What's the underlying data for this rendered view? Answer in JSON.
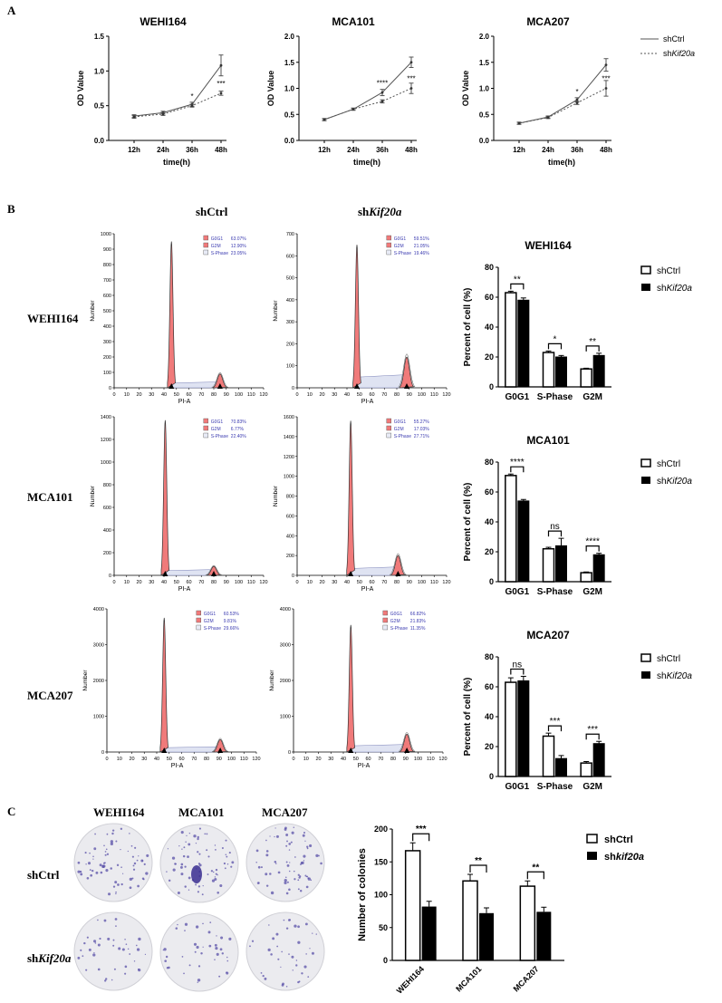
{
  "panels": {
    "a": "A",
    "b": "B",
    "c": "C"
  },
  "panel_a": {
    "legend": {
      "ctrl": "shCtrl",
      "kd_prefix": "sh",
      "kd_italic": "Kif20a"
    },
    "charts": [
      {
        "title": "WEHI164",
        "ylabel": "OD Value",
        "xlabel": "time(h)",
        "ymax": 1.5,
        "yticks": [
          "0.0",
          "0.5",
          "1.0",
          "1.5"
        ],
        "ytick_vals": [
          0,
          0.5,
          1.0,
          1.5
        ],
        "categories": [
          "12h",
          "24h",
          "36h",
          "48h"
        ],
        "ctrl": [
          0.35,
          0.4,
          0.52,
          1.08
        ],
        "ctrl_err": [
          0.02,
          0.02,
          0.03,
          0.15
        ],
        "kd": [
          0.34,
          0.38,
          0.5,
          0.68
        ],
        "kd_err": [
          0.02,
          0.02,
          0.02,
          0.03
        ],
        "marks": [
          "",
          "",
          "*",
          "***"
        ]
      },
      {
        "title": "MCA101",
        "ylabel": "OD Value",
        "xlabel": "time(h)",
        "ymax": 2.0,
        "yticks": [
          "0.0",
          "0.5",
          "1.0",
          "1.5",
          "2.0"
        ],
        "ytick_vals": [
          0,
          0.5,
          1.0,
          1.5,
          2.0
        ],
        "categories": [
          "12h",
          "24h",
          "36h",
          "48h"
        ],
        "ctrl": [
          0.4,
          0.6,
          0.92,
          1.5
        ],
        "ctrl_err": [
          0.02,
          0.02,
          0.06,
          0.1
        ],
        "kd": [
          0.4,
          0.6,
          0.75,
          1.0
        ],
        "kd_err": [
          0.02,
          0.02,
          0.03,
          0.1
        ],
        "marks": [
          "",
          "",
          "****",
          "***"
        ]
      },
      {
        "title": "MCA207",
        "ylabel": "OD Value",
        "xlabel": "time(h)",
        "ymax": 2.0,
        "yticks": [
          "0.0",
          "0.5",
          "1.0",
          "1.5",
          "2.0"
        ],
        "ytick_vals": [
          0,
          0.5,
          1.0,
          1.5,
          2.0
        ],
        "categories": [
          "12h",
          "24h",
          "36h",
          "48h"
        ],
        "ctrl": [
          0.33,
          0.45,
          0.78,
          1.45
        ],
        "ctrl_err": [
          0.02,
          0.02,
          0.04,
          0.12
        ],
        "kd": [
          0.33,
          0.44,
          0.72,
          1.0
        ],
        "kd_err": [
          0.02,
          0.02,
          0.03,
          0.15
        ],
        "marks": [
          "",
          "",
          "*",
          "***"
        ]
      }
    ]
  },
  "panel_b": {
    "col_ctrl": "shCtrl",
    "col_kd_prefix": "sh",
    "col_kd_italic": "Kif20a",
    "rows": [
      "WEHI164",
      "MCA101",
      "MCA207"
    ],
    "xlabel": "PI-A",
    "ylabel": "Number",
    "xticks": [
      "0",
      "10",
      "20",
      "30",
      "40",
      "50",
      "60",
      "70",
      "80",
      "90",
      "100",
      "110",
      "120"
    ],
    "histograms": [
      {
        "yticks": [
          "0",
          "100",
          "200",
          "300",
          "400",
          "500",
          "600",
          "700",
          "800",
          "900",
          "1000"
        ],
        "ymax": 1000,
        "g1_peak": 950,
        "g1_pos": 46,
        "g2_pos": 85,
        "g2_height": 90,
        "stats": [
          {
            "label": "G0G1",
            "value": "63.07%"
          },
          {
            "label": "G2M",
            "value": "12.90%"
          },
          {
            "label": "S-Phase",
            "value": "23.05%"
          }
        ]
      },
      {
        "yticks": [
          "0",
          "100",
          "200",
          "300",
          "400",
          "500",
          "600",
          "700"
        ],
        "ymax": 700,
        "g1_peak": 650,
        "g1_pos": 48,
        "g2_pos": 88,
        "g2_height": 140,
        "stats": [
          {
            "label": "G0G1",
            "value": "59.51%"
          },
          {
            "label": "G2M",
            "value": "21.05%"
          },
          {
            "label": "S-Phase",
            "value": "19.46%"
          }
        ]
      },
      {
        "yticks": [
          "0",
          "200",
          "400",
          "600",
          "800",
          "1000",
          "1200",
          "1400"
        ],
        "ymax": 1400,
        "g1_peak": 1370,
        "g1_pos": 41,
        "g2_pos": 80,
        "g2_height": 80,
        "stats": [
          {
            "label": "G0G1",
            "value": "70.83%"
          },
          {
            "label": "G2M",
            "value": "6.77%"
          },
          {
            "label": "S-Phase",
            "value": "22.40%"
          }
        ]
      },
      {
        "yticks": [
          "0",
          "200",
          "400",
          "600",
          "800",
          "1000",
          "1200",
          "1400",
          "1600"
        ],
        "ymax": 1600,
        "g1_peak": 1560,
        "g1_pos": 43,
        "g2_pos": 81,
        "g2_height": 200,
        "stats": [
          {
            "label": "G0G1",
            "value": "55.27%"
          },
          {
            "label": "G2M",
            "value": "17.03%"
          },
          {
            "label": "S-Phase",
            "value": "27.71%"
          }
        ]
      },
      {
        "yticks": [
          "0",
          "1000",
          "2000",
          "3000",
          "4000"
        ],
        "ymax": 4000,
        "g1_peak": 3750,
        "g1_pos": 46,
        "g2_pos": 91,
        "g2_height": 350,
        "stats": [
          {
            "label": "G0G1",
            "value": "60.53%"
          },
          {
            "label": "G2M",
            "value": "9.81%"
          },
          {
            "label": "S-Phase",
            "value": "29.66%"
          }
        ]
      },
      {
        "yticks": [
          "0",
          "1000",
          "2000",
          "3000",
          "4000"
        ],
        "ymax": 4000,
        "g1_peak": 3550,
        "g1_pos": 46,
        "g2_pos": 91,
        "g2_height": 500,
        "stats": [
          {
            "label": "G0G1",
            "value": "66.82%"
          },
          {
            "label": "G2M",
            "value": "21.83%"
          },
          {
            "label": "S-Phase",
            "value": "11.35%"
          }
        ]
      }
    ],
    "bar_charts": [
      {
        "title": "WEHI164",
        "ylabel": "Percent of cell (%)",
        "categories": [
          "G0G1",
          "S-Phase",
          "G2M"
        ],
        "yticks": [
          "0",
          "20",
          "40",
          "60",
          "80"
        ],
        "ymax": 80,
        "ctrl": [
          63,
          23,
          12
        ],
        "ctrl_err": [
          1,
          1,
          0.5
        ],
        "kd": [
          58,
          20,
          21
        ],
        "kd_err": [
          1.5,
          1,
          1.5
        ],
        "marks": [
          "**",
          "*",
          "**"
        ]
      },
      {
        "title": "MCA101",
        "ylabel": "Percent of cell (%)",
        "categories": [
          "G0G1",
          "S-Phase",
          "G2M"
        ],
        "yticks": [
          "0",
          "20",
          "40",
          "60",
          "80"
        ],
        "ymax": 80,
        "ctrl": [
          71,
          22,
          6
        ],
        "ctrl_err": [
          1,
          1,
          0.5
        ],
        "kd": [
          54,
          24,
          18
        ],
        "kd_err": [
          1,
          5,
          1
        ],
        "marks": [
          "****",
          "ns",
          "****"
        ]
      },
      {
        "title": "MCA207",
        "ylabel": "Percent of cell (%)",
        "categories": [
          "G0G1",
          "S-Phase",
          "G2M"
        ],
        "yticks": [
          "0",
          "20",
          "40",
          "60",
          "80"
        ],
        "ymax": 80,
        "ctrl": [
          63,
          27,
          9
        ],
        "ctrl_err": [
          3,
          2,
          1
        ],
        "kd": [
          64,
          12,
          22
        ],
        "kd_err": [
          3,
          2,
          1.5
        ],
        "marks": [
          "ns",
          "***",
          "***"
        ]
      }
    ],
    "legend": {
      "ctrl": "shCtrl",
      "kd_prefix": "sh",
      "kd_italic": "Kif20a"
    }
  },
  "panel_c": {
    "cols": [
      "WEHI164",
      "MCA101",
      "MCA207"
    ],
    "row_ctrl": "shCtrl",
    "row_kd_prefix": "sh",
    "row_kd_italic": "Kif20a",
    "chart": {
      "ylabel": "Number of colonies",
      "categories": [
        "WEHI164",
        "MCA101",
        "MCA207"
      ],
      "yticks": [
        "0",
        "50",
        "100",
        "150",
        "200"
      ],
      "ymax": 200,
      "ctrl": [
        167,
        121,
        113
      ],
      "ctrl_err": [
        12,
        10,
        8
      ],
      "kd": [
        82,
        72,
        74
      ],
      "kd_err": [
        8,
        8,
        7
      ],
      "marks": [
        "***",
        "**",
        "**"
      ]
    },
    "legend": {
      "ctrl": "shCtrl",
      "kd_prefix": "sh",
      "kd_italic": "kif20a"
    }
  }
}
